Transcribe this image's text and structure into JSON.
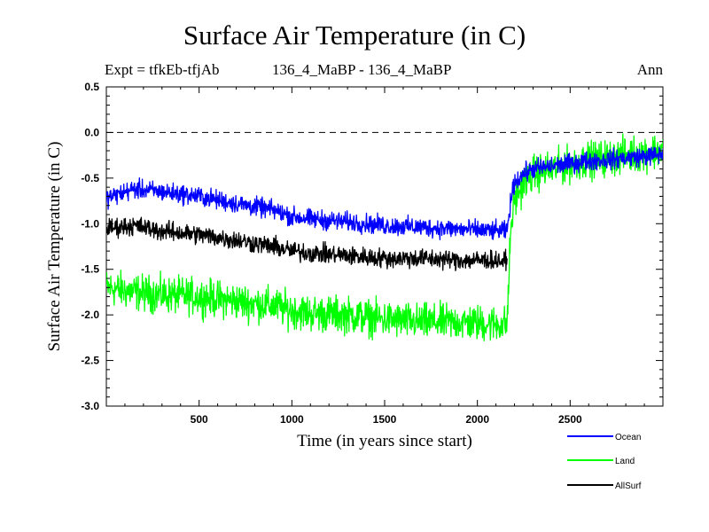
{
  "header": {
    "title": "Surface Air Temperature (in C)",
    "expt": "Expt = tfkEb-tfjAb",
    "comparison": "136_4_MaBP - 136_4_MaBP",
    "period": "Ann"
  },
  "chart_data": {
    "type": "line",
    "title": "Surface Air Temperature (in C)",
    "xlabel": "Time (in years since start)",
    "ylabel": "Surface Air Temperature (in C)",
    "xlim": [
      0,
      3000
    ],
    "ylim": [
      -3.0,
      0.5
    ],
    "xticks": [
      500,
      1000,
      1500,
      2000,
      2500
    ],
    "yticks": [
      -3.0,
      -2.5,
      -2.0,
      -1.5,
      -1.0,
      -0.5,
      0.0,
      0.5
    ],
    "ytick_labels": [
      "-3.0",
      "-2.5",
      "-2.0",
      "-1.5",
      "-1.0",
      "-0.5",
      "0.0",
      "0.5"
    ],
    "reference_line": {
      "y": 0.0,
      "style": "dashed"
    },
    "grid": false,
    "legend_position": "bottom-right",
    "series": [
      {
        "name": "Ocean",
        "color": "#0000ff",
        "noise": 0.09,
        "x": [
          0,
          150,
          300,
          500,
          700,
          900,
          1000,
          1100,
          1300,
          1500,
          1700,
          1900,
          2100,
          2160,
          2180,
          2200,
          2250,
          2300,
          2400,
          2500,
          2600,
          2700,
          2800,
          2900,
          3000
        ],
        "values": [
          -0.72,
          -0.62,
          -0.65,
          -0.7,
          -0.78,
          -0.85,
          -0.92,
          -0.95,
          -0.98,
          -1.02,
          -1.04,
          -1.06,
          -1.08,
          -1.08,
          -0.75,
          -0.55,
          -0.45,
          -0.4,
          -0.37,
          -0.34,
          -0.31,
          -0.3,
          -0.28,
          -0.26,
          -0.24
        ]
      },
      {
        "name": "Land",
        "color": "#00ff00",
        "noise": 0.17,
        "x": [
          0,
          150,
          300,
          500,
          700,
          900,
          1000,
          1100,
          1300,
          1500,
          1700,
          1900,
          2100,
          2160,
          2180,
          2200,
          2250,
          2300,
          2400,
          2500,
          2600,
          2700,
          2800,
          2900,
          3000
        ],
        "values": [
          -1.7,
          -1.75,
          -1.78,
          -1.8,
          -1.85,
          -1.9,
          -1.95,
          -1.98,
          -2.0,
          -2.05,
          -2.08,
          -2.08,
          -2.1,
          -2.1,
          -1.05,
          -0.75,
          -0.55,
          -0.45,
          -0.4,
          -0.35,
          -0.3,
          -0.28,
          -0.25,
          -0.22,
          -0.2
        ]
      },
      {
        "name": "AllSurf",
        "color": "#000000",
        "noise": 0.09,
        "x": [
          0,
          150,
          300,
          500,
          700,
          900,
          1000,
          1100,
          1300,
          1500,
          1700,
          1900,
          2100,
          2160
        ],
        "values": [
          -1.05,
          -1.02,
          -1.08,
          -1.12,
          -1.18,
          -1.25,
          -1.3,
          -1.32,
          -1.35,
          -1.38,
          -1.38,
          -1.4,
          -1.4,
          -1.42
        ]
      }
    ]
  }
}
